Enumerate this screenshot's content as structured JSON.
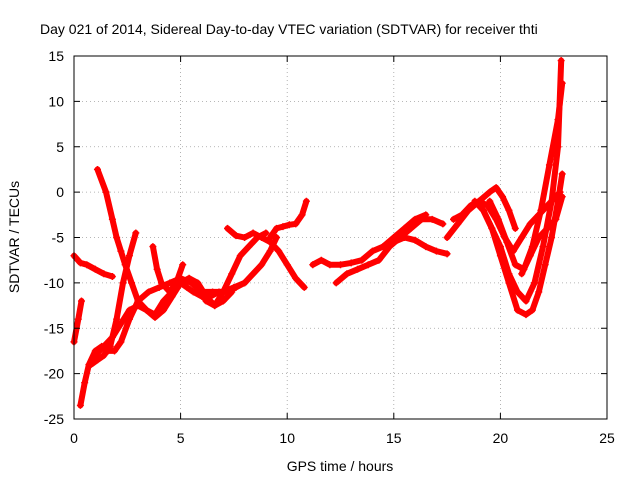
{
  "chart_data": {
    "type": "scatter",
    "title": "Day 021 of 2014, Sidereal Day-to-day VTEC variation (SDTVAR) for receiver thti",
    "xlabel": "GPS time / hours",
    "ylabel": "SDTVAR / TECUs",
    "xlim": [
      0,
      25
    ],
    "ylim": [
      -25,
      15
    ],
    "xticks": [
      0,
      5,
      10,
      15,
      20,
      25
    ],
    "yticks": [
      -25,
      -20,
      -15,
      -10,
      -5,
      0,
      5,
      10,
      15
    ],
    "grid": true,
    "legend": "none",
    "color": "#ff0000",
    "marker": "plus",
    "series": [
      {
        "x": [
          0,
          0.3,
          0.6,
          1.0,
          1.4,
          1.8
        ],
        "y": [
          -7,
          -7.8,
          -8,
          -8.5,
          -9,
          -9.3
        ]
      },
      {
        "x": [
          0,
          0.2,
          0.35
        ],
        "y": [
          -16.5,
          -14,
          -12
        ]
      },
      {
        "x": [
          0.3,
          0.5,
          0.7,
          1.0,
          1.3,
          1.6,
          1.9,
          2.2,
          2.6,
          3.0,
          3.5,
          4.0,
          4.5,
          5.0,
          5.5,
          6.0,
          6.5,
          7.0,
          7.5,
          8.0
        ],
        "y": [
          -23.5,
          -21,
          -19,
          -17.5,
          -17,
          -17.5,
          -17.5,
          -16.5,
          -14,
          -12,
          -11,
          -10.5,
          -10,
          -9.5,
          -10,
          -11,
          -11,
          -11,
          -10.5,
          -10
        ]
      },
      {
        "x": [
          1.1,
          1.5,
          1.8,
          2.0,
          2.2,
          2.4,
          2.7,
          3.0,
          3.4,
          3.8,
          4.2,
          4.6,
          5.0,
          5.4,
          5.8,
          6.2,
          6.6,
          7.0,
          7.4,
          7.8,
          8.2,
          8.6,
          9.0
        ],
        "y": [
          2.5,
          0,
          -3,
          -5,
          -6.5,
          -8,
          -10,
          -12,
          -13,
          -13.5,
          -12,
          -11,
          -10,
          -9.5,
          -10,
          -11.5,
          -12.5,
          -11,
          -9,
          -7,
          -6,
          -5,
          -4.5
        ]
      },
      {
        "x": [
          0.8,
          1.1,
          1.4,
          1.7,
          2.0,
          2.3,
          2.6,
          2.9
        ],
        "y": [
          -19,
          -18.5,
          -18,
          -17,
          -14,
          -10,
          -7,
          -4.5
        ]
      },
      {
        "x": [
          1.0,
          1.4,
          1.8,
          2.2,
          2.6,
          3.0,
          3.4,
          3.8,
          4.2,
          4.6,
          5.0,
          5.4,
          5.8,
          6.2,
          6.6,
          7.0,
          7.4
        ],
        "y": [
          -18,
          -17,
          -16,
          -14.5,
          -13,
          -12.5,
          -13,
          -13.8,
          -13,
          -11.5,
          -10,
          -9.5,
          -10.5,
          -12,
          -12.5,
          -12,
          -11
        ]
      },
      {
        "x": [
          3.7,
          3.9,
          4.1,
          4.3,
          4.5,
          4.8,
          5.1
        ],
        "y": [
          -6,
          -8.5,
          -10,
          -10.5,
          -11,
          -10,
          -8
        ]
      },
      {
        "x": [
          5.0,
          5.3,
          5.6,
          6.0,
          6.4,
          6.8,
          7.2,
          7.6,
          8.0,
          8.4,
          8.8,
          9.2,
          9.5
        ],
        "y": [
          -10,
          -10.5,
          -11,
          -11.5,
          -11.5,
          -11,
          -11,
          -10.5,
          -10,
          -9,
          -8,
          -6.5,
          -5
        ]
      },
      {
        "x": [
          7.2,
          7.6,
          8.0,
          8.4,
          8.8,
          9.2,
          9.6,
          10.0,
          10.4,
          10.8
        ],
        "y": [
          -4,
          -4.8,
          -5,
          -4.5,
          -5,
          -5.5,
          -6.5,
          -8,
          -9.5,
          -10.5
        ]
      },
      {
        "x": [
          9.2,
          9.5,
          9.8,
          10.1,
          10.4,
          10.7,
          10.9
        ],
        "y": [
          -5,
          -4,
          -3.8,
          -3.6,
          -3.5,
          -2.5,
          -1
        ]
      },
      {
        "x": [
          11.2,
          11.6,
          12.0,
          12.5,
          13.0,
          13.5,
          14.0,
          14.5,
          15.0,
          15.5,
          16.0,
          16.5
        ],
        "y": [
          -8,
          -7.5,
          -8,
          -8,
          -7.8,
          -7.5,
          -6.5,
          -6,
          -5,
          -4,
          -3,
          -2.5
        ]
      },
      {
        "x": [
          12.3,
          12.8,
          13.3,
          13.8,
          14.3,
          14.8,
          15.3,
          15.8,
          16.3,
          16.8,
          17.3
        ],
        "y": [
          -10,
          -9,
          -8.5,
          -8,
          -7.5,
          -6,
          -5,
          -4,
          -3,
          -3,
          -3.5
        ]
      },
      {
        "x": [
          14.5,
          15.0,
          15.5,
          16.0,
          16.5,
          17.0,
          17.5
        ],
        "y": [
          -6,
          -5.5,
          -5,
          -5.3,
          -6,
          -6.5,
          -6.8
        ]
      },
      {
        "x": [
          17.5,
          18.0,
          18.5,
          19.0,
          19.5,
          19.8,
          20.1,
          20.4,
          20.7
        ],
        "y": [
          -5,
          -3.5,
          -2,
          -1,
          0,
          0.5,
          -0.5,
          -2,
          -4
        ]
      },
      {
        "x": [
          17.8,
          18.2,
          18.6,
          19.0,
          19.4,
          19.8,
          20.2,
          20.6,
          21.0,
          21.4,
          21.8,
          22.2,
          22.6,
          22.8
        ],
        "y": [
          -3,
          -2.5,
          -1.5,
          -1,
          -1.5,
          -3,
          -5,
          -6.5,
          -5,
          -3.5,
          -2.5,
          -1.5,
          -0.5,
          0
        ]
      },
      {
        "x": [
          18.8,
          19.2,
          19.6,
          20.0,
          20.4,
          20.8,
          21.2,
          21.5,
          21.8,
          22.1,
          22.4,
          22.7,
          22.9
        ],
        "y": [
          -1,
          -2,
          -4,
          -7,
          -10,
          -13,
          -13.5,
          -13,
          -11,
          -8,
          -5,
          -1,
          2
        ]
      },
      {
        "x": [
          19.5,
          19.9,
          20.3,
          20.7,
          21.1,
          21.5,
          21.9,
          22.3,
          22.7,
          22.9
        ],
        "y": [
          -1,
          -3,
          -5.5,
          -8,
          -8.5,
          -6,
          -2,
          3,
          8,
          12
        ]
      },
      {
        "x": [
          19.2,
          19.6,
          20.0,
          20.4,
          20.8,
          21.2,
          21.6,
          22.0,
          22.4,
          22.7,
          22.85
        ],
        "y": [
          -2,
          -4,
          -6,
          -9,
          -11,
          -12,
          -10,
          -6,
          -1,
          5,
          14.5
        ]
      },
      {
        "x": [
          21.0,
          21.4,
          21.8,
          22.2,
          22.6,
          22.9
        ],
        "y": [
          -9,
          -7,
          -5,
          -4,
          -3,
          -0.5
        ]
      }
    ]
  }
}
